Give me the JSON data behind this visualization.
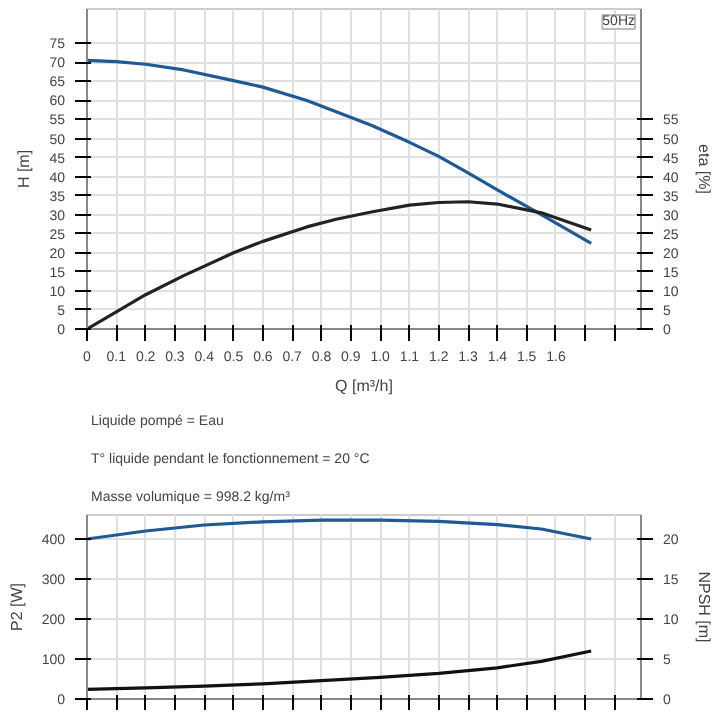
{
  "chart_data": [
    {
      "type": "line",
      "xlabel": "Q [m³/h]",
      "ylabel": "H [m]",
      "y2label": "eta [%]",
      "annotations": [
        "50Hz"
      ],
      "x": [
        0,
        0.1,
        0.2,
        0.33,
        0.5,
        0.6,
        0.75,
        0.85,
        0.97,
        1.1,
        1.2,
        1.3,
        1.4,
        1.55,
        1.72
      ],
      "series": [
        {
          "color": "#1f5a96",
          "axis": "y",
          "values": [
            70.5,
            70.2,
            69.5,
            68,
            65.2,
            63.5,
            60,
            57,
            53.5,
            49,
            45.3,
            41,
            36.5,
            30,
            22.5
          ]
        },
        {
          "color": "#222222",
          "axis": "y2",
          "values": [
            0,
            4.5,
            9,
            14,
            20,
            23,
            26.8,
            28.8,
            30.7,
            32.5,
            33.2,
            33.4,
            32.8,
            30.5,
            26
          ]
        }
      ],
      "xlim": [
        0,
        1.89
      ],
      "ylim": [
        0,
        84
      ],
      "y2lim": [
        0,
        84
      ],
      "xticks": [
        0,
        0.1,
        0.2,
        0.3,
        0.4,
        0.5,
        0.6,
        0.7,
        0.8,
        0.9,
        {
          "value": 1.0,
          "label": "1.0"
        },
        1.1,
        1.2,
        1.3,
        1.4,
        1.5,
        1.6,
        {
          "value": 1.7,
          "label": null
        },
        {
          "value": 1.8,
          "label": null
        }
      ],
      "yticks": [
        0,
        5,
        10,
        15,
        20,
        25,
        30,
        35,
        40,
        45,
        50,
        55,
        60,
        65,
        70,
        75
      ],
      "y2ticks": [
        0,
        5,
        10,
        15,
        20,
        25,
        30,
        35,
        40,
        45,
        50,
        55
      ],
      "grid": true
    },
    {
      "type": "line",
      "ylabel": "P2 [W]",
      "y2label": "NPSH [m]",
      "annotations": [
        "Liquide pompé = Eau",
        "T° liquide pendant le fonctionnement = 20 °C",
        "Masse volumique = 998.2 kg/m³"
      ],
      "x": [
        0,
        0.2,
        0.4,
        0.6,
        0.8,
        1.0,
        1.2,
        1.4,
        1.55,
        1.72
      ],
      "series": [
        {
          "color": "#1f5a96",
          "axis": "y",
          "values": [
            400,
            420,
            435,
            443,
            447,
            447,
            444,
            436,
            425,
            400
          ]
        },
        {
          "color": "#111111",
          "axis": "y2",
          "values": [
            1.2,
            1.4,
            1.6,
            1.9,
            2.3,
            2.7,
            3.2,
            3.9,
            4.7,
            6
          ]
        }
      ],
      "xlim": [
        0,
        1.89
      ],
      "ylim": [
        0,
        460
      ],
      "y2lim": [
        0,
        23
      ],
      "xticks": [
        0,
        0.1,
        0.2,
        0.3,
        0.4,
        0.5,
        0.6,
        0.7,
        0.8,
        0.9,
        1.0,
        1.1,
        1.2,
        1.3,
        1.4,
        1.5,
        1.6,
        1.7,
        1.8
      ],
      "yticks": [
        0,
        100,
        200,
        300,
        400
      ],
      "y2ticks": [
        0,
        5,
        10,
        15,
        20
      ],
      "tick_labels": "y",
      "grid": true
    }
  ]
}
